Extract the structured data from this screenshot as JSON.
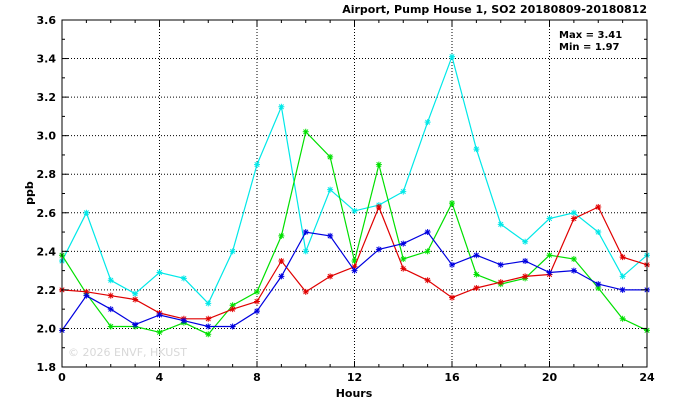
{
  "chart_data": {
    "type": "line",
    "title": "Airport, Pump House 1, SO2 20180809-20180812",
    "xlabel": "Hours",
    "ylabel": "ppb",
    "xlim": [
      0,
      24
    ],
    "ylim": [
      1.8,
      3.6
    ],
    "xticks": [
      0,
      4,
      8,
      12,
      16,
      20,
      24
    ],
    "yticks": [
      1.8,
      2.0,
      2.2,
      2.4,
      2.6,
      2.8,
      3.0,
      3.2,
      3.4,
      3.6
    ],
    "grid": true,
    "stats": {
      "max_label": "Max = 3.41",
      "min_label": "Min = 1.97"
    },
    "watermark": "© 2026 ENVF, HKUST",
    "x": [
      0,
      1,
      2,
      3,
      4,
      5,
      6,
      7,
      8,
      9,
      10,
      11,
      12,
      13,
      14,
      15,
      16,
      17,
      18,
      19,
      20,
      21,
      22,
      23,
      24
    ],
    "series": [
      {
        "color": "#00e8e8",
        "values": [
          2.35,
          2.6,
          2.25,
          2.18,
          2.29,
          2.26,
          2.13,
          2.4,
          2.85,
          3.15,
          2.4,
          2.72,
          2.61,
          2.64,
          2.71,
          3.07,
          3.41,
          2.93,
          2.54,
          2.45,
          2.57,
          2.6,
          2.5,
          2.27,
          2.38
        ]
      },
      {
        "color": "#00e000",
        "values": [
          2.38,
          2.18,
          2.01,
          2.01,
          1.98,
          2.03,
          1.97,
          2.12,
          2.19,
          2.48,
          3.02,
          2.89,
          2.35,
          2.85,
          2.36,
          2.4,
          2.65,
          2.28,
          2.23,
          2.26,
          2.38,
          2.36,
          2.21,
          2.05,
          1.99
        ]
      },
      {
        "color": "#e00000",
        "values": [
          2.2,
          2.19,
          2.17,
          2.15,
          2.08,
          2.05,
          2.05,
          2.1,
          2.14,
          2.35,
          2.19,
          2.27,
          2.32,
          2.63,
          2.31,
          2.25,
          2.16,
          2.21,
          2.24,
          2.27,
          2.28,
          2.57,
          2.63,
          2.37,
          2.33
        ]
      },
      {
        "color": "#0000e0",
        "values": [
          1.99,
          2.17,
          2.1,
          2.02,
          2.07,
          2.04,
          2.01,
          2.01,
          2.09,
          2.27,
          2.5,
          2.48,
          2.3,
          2.41,
          2.44,
          2.5,
          2.33,
          2.38,
          2.33,
          2.35,
          2.29,
          2.3,
          2.23,
          2.2,
          2.2
        ]
      }
    ]
  }
}
